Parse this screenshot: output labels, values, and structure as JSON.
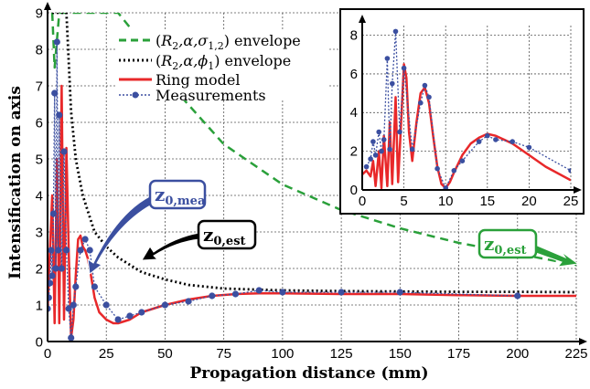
{
  "chart_data": [
    {
      "type": "line",
      "xlabel": "Propagation distance (mm)",
      "ylabel": "Intensification on axis",
      "xlim": [
        0,
        225
      ],
      "ylim": [
        0,
        9
      ],
      "xticks": [
        0,
        25,
        50,
        75,
        100,
        125,
        150,
        175,
        200,
        225
      ],
      "yticks": [
        0,
        1,
        2,
        3,
        4,
        5,
        6,
        7,
        8,
        9
      ],
      "grid": true,
      "legend_position": "top-left",
      "legend": [
        {
          "label_parts": [
            "(",
            "R",
            "2",
            ",α,σ",
            "1,2",
            ") envelope"
          ],
          "style": "green-dashed"
        },
        {
          "label_parts": [
            "(",
            "R",
            "2",
            ",α,ϕ",
            "1",
            ") envelope"
          ],
          "style": "black-dotted"
        },
        {
          "label": "Ring model",
          "style": "red-solid"
        },
        {
          "label": "Measurements",
          "style": "blue-dotted-markers"
        }
      ],
      "series": [
        {
          "name": "Ring model",
          "color": "#e8282a",
          "x": [
            0,
            1,
            2,
            3,
            4,
            5,
            6,
            7,
            8,
            9,
            10,
            11,
            12,
            13,
            14,
            15,
            16,
            17,
            18,
            19,
            20,
            22,
            25,
            28,
            30,
            35,
            40,
            45,
            50,
            60,
            70,
            80,
            90,
            100,
            125,
            150,
            175,
            200,
            225
          ],
          "y": [
            0.8,
            2.5,
            4.0,
            0.5,
            5.0,
            0.5,
            7.0,
            0.6,
            5.3,
            2.5,
            0.1,
            0.6,
            1.8,
            2.8,
            2.9,
            2.6,
            2.5,
            2.3,
            2.0,
            1.6,
            1.2,
            0.8,
            0.6,
            0.5,
            0.5,
            0.6,
            0.8,
            0.9,
            1.0,
            1.15,
            1.25,
            1.3,
            1.32,
            1.32,
            1.3,
            1.3,
            1.27,
            1.25,
            1.25
          ]
        },
        {
          "name": "Measurements",
          "color": "#3b4fa0",
          "x": [
            0,
            0.5,
            1,
            1.5,
            2,
            2.5,
            3,
            3.5,
            4,
            4.5,
            5,
            6,
            7,
            8,
            9,
            10,
            11,
            12,
            14,
            16,
            18,
            20,
            25,
            30,
            35,
            40,
            50,
            60,
            70,
            80,
            90,
            100,
            125,
            150,
            200
          ],
          "y": [
            0.9,
            1.2,
            1.6,
            2.5,
            1.8,
            3.5,
            6.8,
            2.0,
            8.2,
            2.5,
            6.2,
            2.0,
            5.2,
            2.5,
            0.9,
            0.1,
            1.0,
            1.5,
            2.5,
            2.8,
            2.5,
            1.5,
            1.0,
            0.6,
            0.7,
            0.8,
            1.0,
            1.1,
            1.25,
            1.3,
            1.4,
            1.35,
            1.35,
            1.35,
            1.25
          ]
        },
        {
          "name": "(R2,α,σ1,2) envelope",
          "color": "#2aa03a",
          "x": [
            2,
            3,
            5,
            8,
            10,
            15,
            20,
            30,
            40,
            50,
            75,
            100,
            125,
            150,
            175,
            200,
            225
          ],
          "y": [
            9.0,
            7.5,
            9.0,
            9.0,
            9.0,
            9.0,
            9.0,
            9.0,
            8.2,
            7.2,
            5.4,
            4.3,
            3.6,
            3.1,
            2.7,
            2.4,
            2.1
          ]
        },
        {
          "name": "(R2,α,ϕ1) envelope",
          "color": "#000000",
          "x": [
            2,
            5,
            8,
            10,
            12,
            15,
            20,
            25,
            30,
            40,
            50,
            60,
            75,
            100,
            125,
            150,
            175,
            200,
            225
          ],
          "y": [
            9.0,
            9.0,
            9.0,
            6.3,
            5.0,
            4.0,
            3.0,
            2.6,
            2.3,
            1.9,
            1.7,
            1.55,
            1.45,
            1.4,
            1.38,
            1.37,
            1.36,
            1.36,
            1.35
          ]
        }
      ],
      "annotations": [
        {
          "text_main": "z",
          "text_sub": "0,mea",
          "color": "#3b4fa0"
        },
        {
          "text_main": "z",
          "text_sub": "0,est",
          "color": "#000000"
        },
        {
          "text_main": "z",
          "text_sub": "0,est",
          "color": "#2aa03a"
        }
      ]
    },
    {
      "type": "line",
      "xlim": [
        0,
        25
      ],
      "ylim": [
        0,
        8.5
      ],
      "xticks": [
        0,
        5,
        10,
        15,
        20,
        25
      ],
      "yticks": [
        0,
        2,
        4,
        6,
        8
      ],
      "grid": true,
      "series": [
        {
          "name": "Ring model",
          "color": "#e8282a",
          "x": [
            0,
            0.5,
            1,
            1.3,
            1.6,
            2,
            2.3,
            2.6,
            3,
            3.3,
            3.6,
            4,
            4.3,
            4.6,
            5,
            5.3,
            5.6,
            6,
            6.5,
            7,
            7.5,
            8,
            8.5,
            9,
            9.5,
            10,
            10.5,
            11,
            12,
            13,
            14,
            15,
            16,
            17,
            18,
            19,
            20,
            22,
            25
          ],
          "y": [
            0.8,
            1.0,
            0.7,
            1.5,
            0.2,
            2.0,
            0.1,
            2.8,
            0.2,
            3.5,
            0.3,
            4.8,
            0.4,
            3.0,
            6.5,
            5.8,
            3.0,
            1.5,
            3.5,
            5.0,
            5.3,
            4.5,
            2.8,
            1.2,
            0.3,
            0.1,
            0.4,
            0.9,
            1.8,
            2.4,
            2.7,
            2.9,
            2.8,
            2.6,
            2.4,
            2.1,
            1.8,
            1.2,
            0.5
          ]
        },
        {
          "name": "Measurements",
          "color": "#3b4fa0",
          "x": [
            0.5,
            1,
            1.3,
            1.6,
            2,
            2.3,
            2.6,
            3,
            3.3,
            3.6,
            4,
            4.5,
            5,
            6,
            7,
            7.5,
            8,
            9,
            10,
            11,
            12,
            14,
            15,
            16,
            18,
            20,
            25
          ],
          "y": [
            1.2,
            1.6,
            2.5,
            1.8,
            3.0,
            2.0,
            2.6,
            6.8,
            2.1,
            5.5,
            8.2,
            3.0,
            6.3,
            2.1,
            4.5,
            5.4,
            4.8,
            1.1,
            0.1,
            1.0,
            1.5,
            2.5,
            2.8,
            2.6,
            2.5,
            2.2,
            1.0
          ]
        }
      ]
    }
  ]
}
